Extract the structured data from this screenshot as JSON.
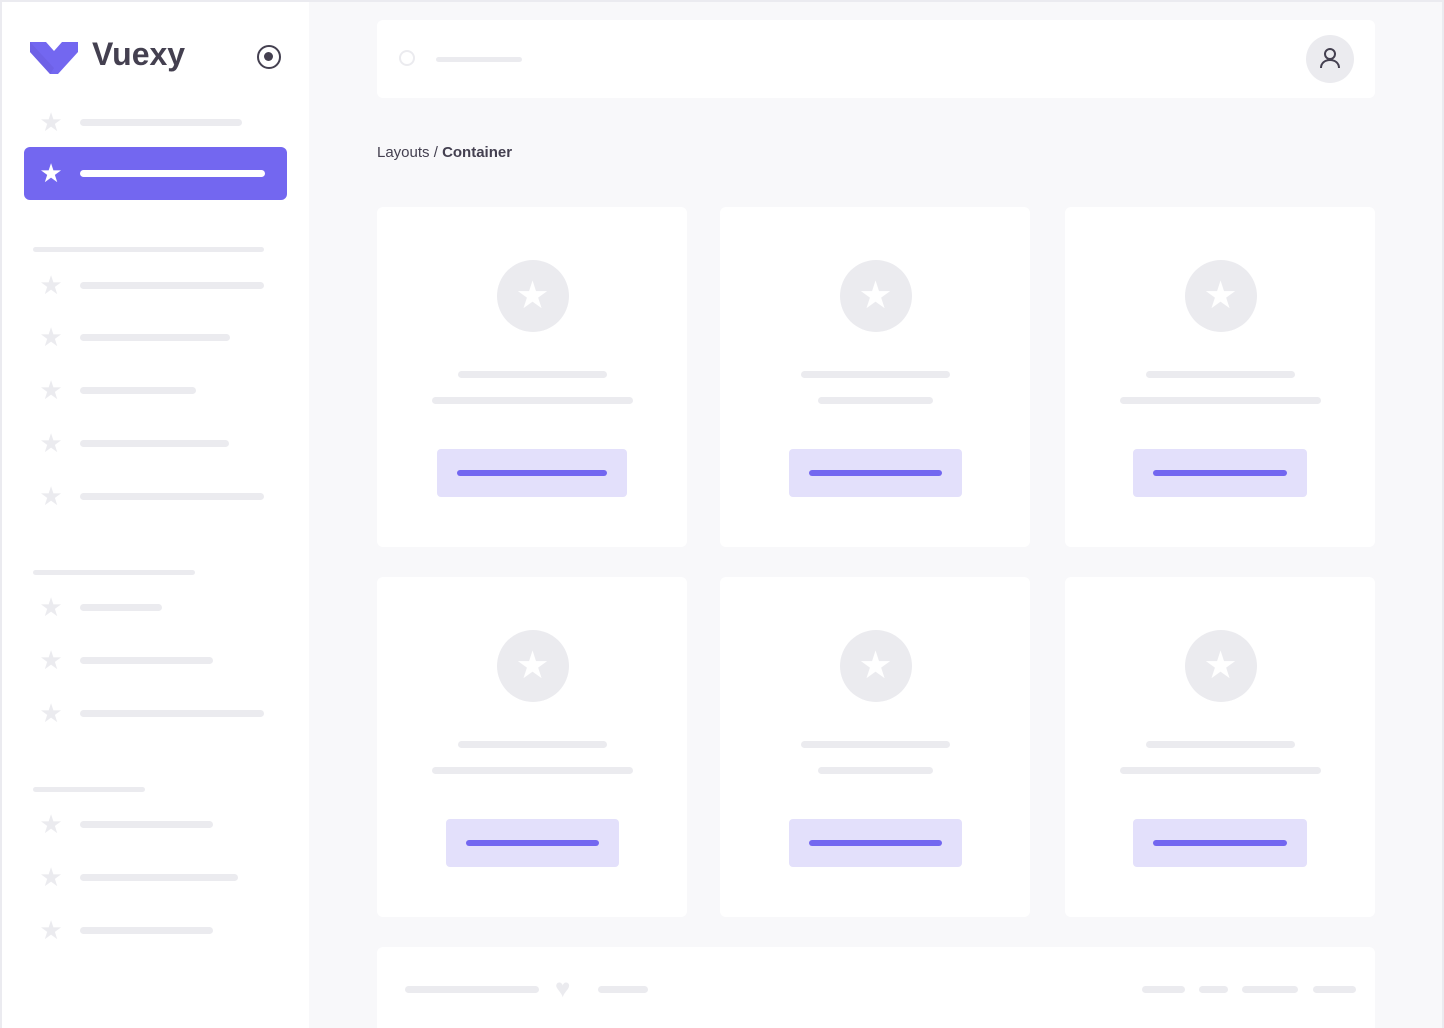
{
  "brand": {
    "name": "Vuexy",
    "color": "#7367f0"
  },
  "breadcrumb": {
    "parent": "Layouts",
    "separator": " / ",
    "current": "Container"
  },
  "icons": {
    "nav": "star-icon",
    "toggle": "radio-circle-icon",
    "search": "search-icon",
    "user": "user-icon",
    "footer": "heart-icon"
  }
}
